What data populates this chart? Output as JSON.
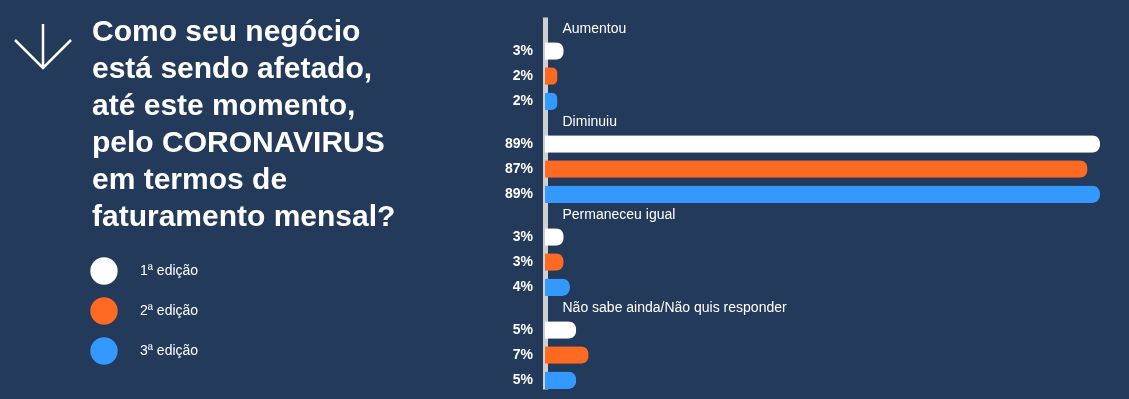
{
  "chart_data": {
    "type": "bar",
    "orientation": "horizontal",
    "title": "Como seu negócio está sendo afetado, até este momento, pelo CORONAVIRUS em termos de faturamento mensal?",
    "categories": [
      "Aumentou",
      "Diminuiu",
      "Permaneceu igual",
      "Não sabe ainda/Não quis responder"
    ],
    "series": [
      {
        "name": "1ª edição",
        "color": "#ffffff",
        "values": [
          3,
          89,
          3,
          5
        ],
        "value_labels": [
          "3%",
          "89%",
          "3%",
          "5%"
        ]
      },
      {
        "name": "2ª edição",
        "color": "#ff6a22",
        "values": [
          2,
          87,
          3,
          7
        ],
        "value_labels": [
          "2%",
          "87%",
          "3%",
          "7%"
        ]
      },
      {
        "name": "3ª edição",
        "color": "#3399ff",
        "values": [
          2,
          89,
          4,
          5
        ],
        "value_labels": [
          "2%",
          "89%",
          "4%",
          "5%"
        ]
      }
    ],
    "legend": "left",
    "grid": false
  }
}
